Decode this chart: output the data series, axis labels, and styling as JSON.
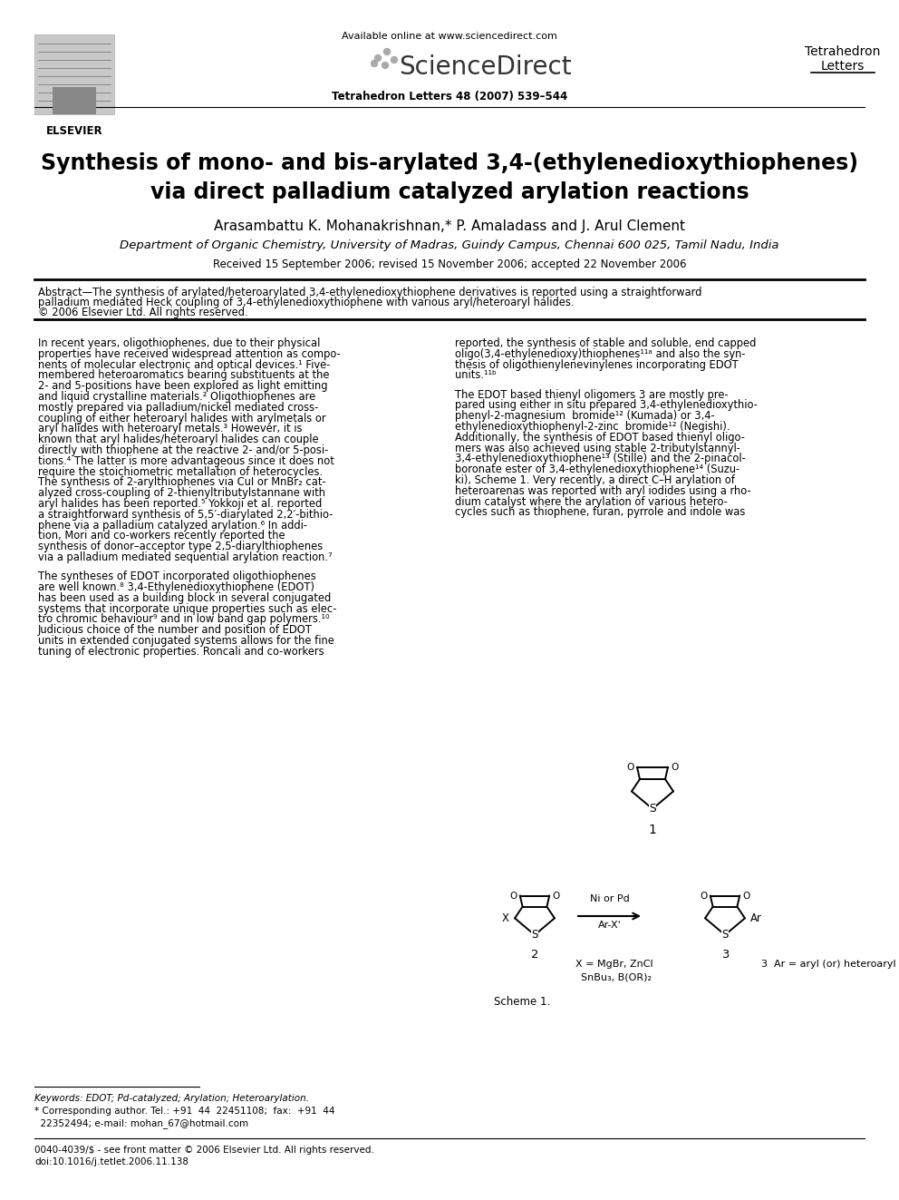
{
  "title_line1": "Synthesis of mono- and bis-arylated 3,4-(ethylenedioxythiophenes)",
  "title_line2": "via direct palladium catalyzed arylation reactions",
  "authors": "Arasambattu K. Mohanakrishnan,* P. Amaladass and J. Arul Clement",
  "affiliation": "Department of Organic Chemistry, University of Madras, Guindy Campus, Chennai 600 025, Tamil Nadu, India",
  "received": "Received 15 September 2006; revised 15 November 2006; accepted 22 November 2006",
  "journal_ref": "Tetrahedron Letters 48 (2007) 539–544",
  "available_online": "Available online at www.sciencedirect.com",
  "journal_right1": "Tetrahedron",
  "journal_right2": "Letters",
  "abstract_text1": "Abstract—The synthesis of arylated/heteroarylated 3,4-ethylenedioxythiophene derivatives is reported using a straightforward",
  "abstract_text2": "palladium mediated Heck coupling of 3,4-ethylenedioxythiophene with various aryl/heteroaryl halides.",
  "abstract_text3": "© 2006 Elsevier Ltd. All rights reserved.",
  "col1_para1_lines": [
    "In recent years, oligothiophenes, due to their physical",
    "properties have received widespread attention as compo-",
    "nents of molecular electronic and optical devices.¹ Five-",
    "membered heteroaromatics bearing substituents at the",
    "2- and 5-positions have been explored as light emitting",
    "and liquid crystalline materials.² Oligothiophenes are",
    "mostly prepared via palladium/nickel mediated cross-",
    "coupling of either heteroaryl halides with arylmetals or",
    "aryl halides with heteroaryl metals.³ However, it is",
    "known that aryl halides/heteroaryl halides can couple",
    "directly with thiophene at the reactive 2- and/or 5-posi-",
    "tions.⁴ The latter is more advantageous since it does not",
    "require the stoichiometric metallation of heterocycles.",
    "The synthesis of 2-arylthiophenes via CuI or MnBr₂ cat-",
    "alyzed cross-coupling of 2-thienyltributylstannane with",
    "aryl halides has been reported.⁵ Yokkoji et al. reported",
    "a straightforward synthesis of 5,5′-diarylated 2,2′-bithio-",
    "phene via a palladium catalyzed arylation.⁶ In addi-",
    "tion, Mori and co-workers recently reported the",
    "synthesis of donor–acceptor type 2,5-diarylthiophenes",
    "via a palladium mediated sequential arylation reaction.⁷"
  ],
  "col1_para2_lines": [
    "The syntheses of EDOT incorporated oligothiophenes",
    "are well known.⁸ 3,4-Ethylenedioxythiophene (EDOT)",
    "has been used as a building block in several conjugated",
    "systems that incorporate unique properties such as elec-",
    "tro chromic behaviour⁹ and in low band gap polymers.¹⁰",
    "Judicious choice of the number and position of EDOT",
    "units in extended conjugated systems allows for the fine",
    "tuning of electronic properties. Roncali and co-workers"
  ],
  "col2_para1_lines": [
    "reported, the synthesis of stable and soluble, end capped",
    "oligo(3,4-ethylenedioxy)thiophenes¹¹ᵃ and also the syn-",
    "thesis of oligothienylenevinylenes incorporating EDOT",
    "units.¹¹ᵇ"
  ],
  "col2_para2_lines": [
    "The EDOT based thienyl oligomers 3 are mostly pre-",
    "pared using either in situ prepared 3,4-ethylenedioxythio-",
    "phenyl-2-magnesium  bromide¹² (Kumada) or 3,4-",
    "ethylenedioxythiophenyl-2-zinc  bromide¹² (Negishi).",
    "Additionally, the synthesis of EDOT based thienyl oligo-",
    "mers was also achieved using stable 2-tributylstannyl-",
    "3,4-ethylenedioxythiophene¹³ (Stille) and the 2-pinacol-",
    "boronate ester of 3,4-ethylenedioxythiophene¹⁴ (Suzu-",
    "ki), Scheme 1. Very recently, a direct C–H arylation of",
    "heteroarenas was reported with aryl iodides using a rho-",
    "dium catalyst where the arylation of various hetero-",
    "cycles such as thiophene, furan, pyrrole and indole was"
  ],
  "keywords_text": "Keywords: EDOT; Pd-catalyzed; Arylation; Heteroarylation.",
  "corr_author1": "* Corresponding author. Tel.: +91  44  22451108;  fax:  +91  44",
  "corr_author2": "  22352494; e-mail: mohan_67@hotmail.com",
  "footer1": "0040-4039/$ - see front matter © 2006 Elsevier Ltd. All rights reserved.",
  "footer2": "doi:10.1016/j.tetlet.2006.11.138",
  "scheme_label": "Scheme 1.",
  "bg_color": "#ffffff"
}
